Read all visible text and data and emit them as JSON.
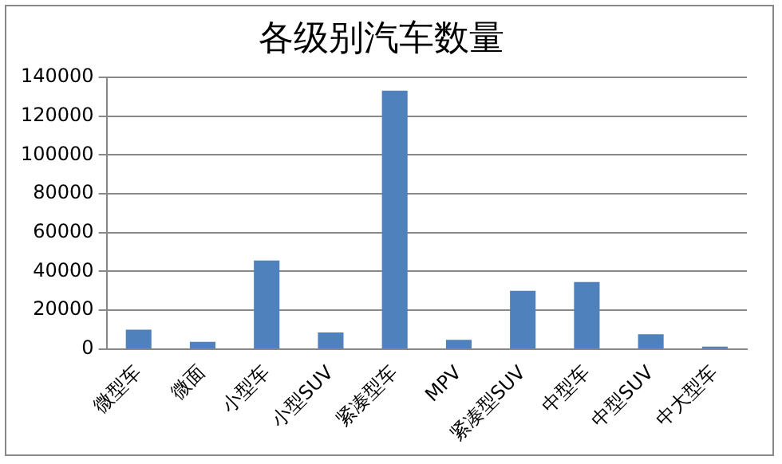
{
  "chart_data": {
    "type": "bar",
    "title": "各级别汽车数量",
    "categories": [
      "微型车",
      "微面",
      "小型车",
      "小型SUV",
      "紧凑型车",
      "MPV",
      "紧凑型SUV",
      "中型车",
      "中型SUV",
      "中大型车"
    ],
    "values": [
      10000,
      3800,
      45600,
      8600,
      133000,
      4800,
      30000,
      34500,
      7700,
      1300
    ],
    "color": "#4f81bd",
    "ylim": [
      0,
      140000
    ],
    "yticks": [
      0,
      20000,
      40000,
      60000,
      80000,
      100000,
      120000,
      140000
    ],
    "grid": "y",
    "legend": false
  }
}
